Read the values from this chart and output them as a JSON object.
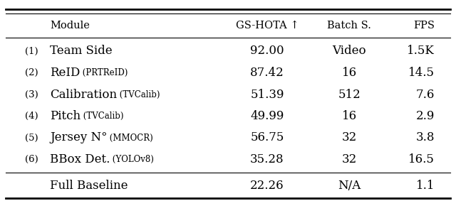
{
  "col_headers": [
    "Module",
    "GS-HOTA ↑",
    "Batch S.",
    "FPS"
  ],
  "rows": [
    {
      "num": "(1)",
      "module_main": "Team Side",
      "module_sub": "",
      "gs_hota": "92.00",
      "batch": "Video",
      "fps": "1.5K"
    },
    {
      "num": "(2)",
      "module_main": "ReID",
      "module_sub": " (PRTReID)",
      "gs_hota": "87.42",
      "batch": "16",
      "fps": "14.5"
    },
    {
      "num": "(3)",
      "module_main": "Calibration",
      "module_sub": " (TVCalib)",
      "gs_hota": "51.39",
      "batch": "512",
      "fps": "7.6"
    },
    {
      "num": "(4)",
      "module_main": "Pitch",
      "module_sub": " (TVCalib)",
      "gs_hota": "49.99",
      "batch": "16",
      "fps": "2.9"
    },
    {
      "num": "(5)",
      "module_main": "Jersey N°",
      "module_sub": " (MMOCR)",
      "gs_hota": "56.75",
      "batch": "32",
      "fps": "3.8"
    },
    {
      "num": "(6)",
      "module_main": "BBox Det.",
      "module_sub": " (YOLOv8)",
      "gs_hota": "35.28",
      "batch": "32",
      "fps": "16.5"
    }
  ],
  "footer": {
    "num": "",
    "module_main": "Full Baseline",
    "module_sub": "",
    "gs_hota": "22.26",
    "batch": "N/A",
    "fps": "1.1"
  },
  "bg_color": "#ffffff",
  "text_color": "#000000",
  "header_fontsize": 10.5,
  "body_fontsize": 12,
  "small_fontsize": 8.5,
  "num_fontsize": 9.5,
  "footer_fontsize": 12
}
